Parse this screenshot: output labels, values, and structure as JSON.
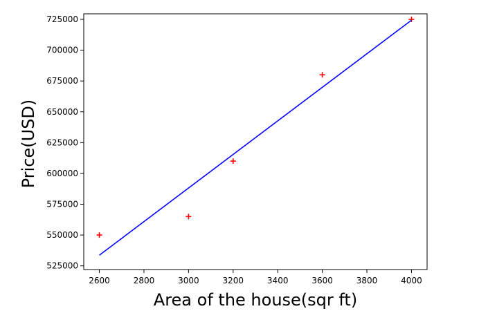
{
  "chart_data": {
    "type": "scatter",
    "title": "",
    "xlabel": "Area of the house(sqr ft)",
    "ylabel": "Price(USD)",
    "xlim": [
      2530,
      4070
    ],
    "ylim": [
      522000,
      729500
    ],
    "x_ticks": [
      2600,
      2800,
      3000,
      3200,
      3400,
      3600,
      3800,
      4000
    ],
    "x_tick_labels": [
      "2600",
      "2800",
      "3000",
      "3200",
      "3400",
      "3600",
      "3800",
      "4000"
    ],
    "y_ticks": [
      525000,
      550000,
      575000,
      600000,
      625000,
      650000,
      675000,
      700000,
      725000
    ],
    "y_tick_labels": [
      "525000",
      "550000",
      "575000",
      "600000",
      "625000",
      "650000",
      "675000",
      "700000",
      "725000"
    ],
    "grid": false,
    "legend": "none",
    "series": [
      {
        "kind": "scatter",
        "marker": "plus",
        "color": "#ff0000",
        "x": [
          2600,
          3000,
          3200,
          3600,
          4000
        ],
        "y": [
          550000,
          565000,
          610000,
          680000,
          725000
        ]
      },
      {
        "kind": "line",
        "color": "#0000ff",
        "x": [
          2600,
          4000
        ],
        "y": [
          533664,
          724332
        ]
      }
    ]
  }
}
